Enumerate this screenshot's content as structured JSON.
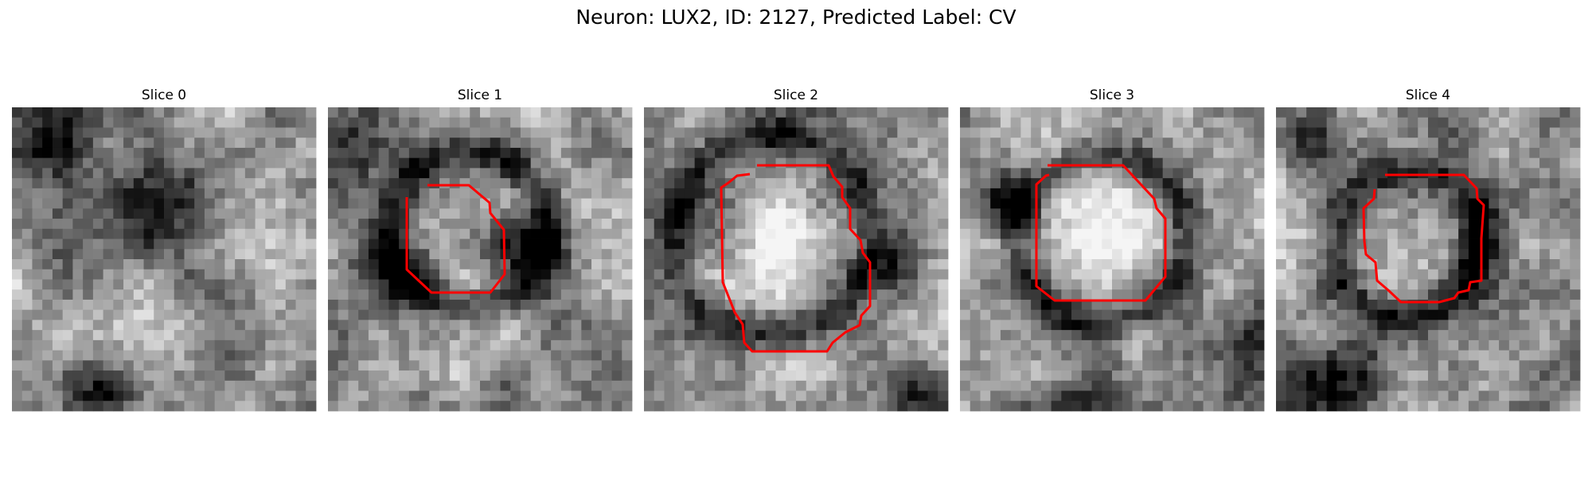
{
  "figure": {
    "title": "Neuron: LUX2, ID: 2127, Predicted Label: CV"
  },
  "colors": {
    "background": "#ffffff",
    "contour": "#ff0000",
    "colormap": "grayscale"
  },
  "panels": [
    {
      "title": "Slice 0",
      "has_contour": false,
      "bright_blob": "none"
    },
    {
      "title": "Slice 1",
      "has_contour": true,
      "bright_blob": "center"
    },
    {
      "title": "Slice 2",
      "has_contour": true,
      "bright_blob": "center"
    },
    {
      "title": "Slice 3",
      "has_contour": true,
      "bright_blob": "center"
    },
    {
      "title": "Slice 4",
      "has_contour": true,
      "bright_blob": "center"
    }
  ]
}
